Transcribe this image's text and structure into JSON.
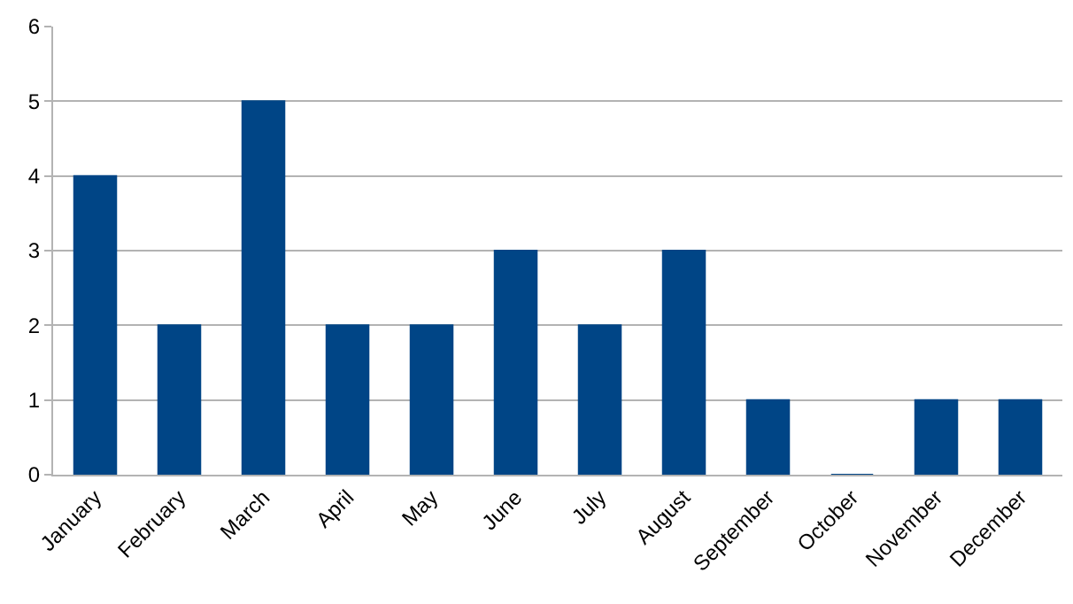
{
  "chart_data": {
    "type": "bar",
    "categories": [
      "January",
      "February",
      "March",
      "April",
      "May",
      "June",
      "July",
      "August",
      "September",
      "October",
      "November",
      "December"
    ],
    "values": [
      4,
      2,
      5,
      2,
      2,
      3,
      2,
      3,
      1,
      0,
      1,
      1
    ],
    "color": "#004586",
    "ylim": [
      0,
      6
    ],
    "yticks": [
      0,
      1,
      2,
      3,
      4,
      5,
      6
    ],
    "grid": "y"
  }
}
